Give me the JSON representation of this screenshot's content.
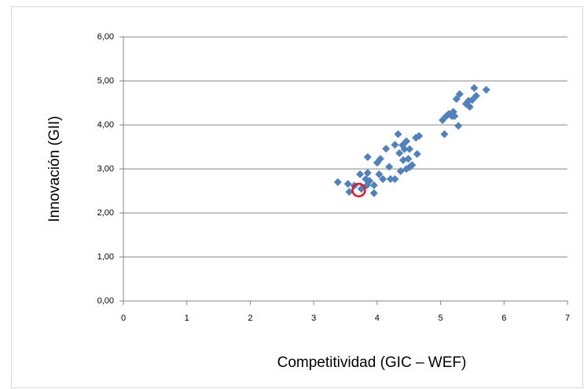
{
  "chart_data": {
    "type": "scatter",
    "x_label": "Competitividad (GIC – WEF)",
    "y_label": "Innovación (GII)",
    "xlim": [
      0,
      7
    ],
    "xticks": [
      0,
      1,
      2,
      3,
      4,
      5,
      6,
      7
    ],
    "ylim": [
      0,
      6
    ],
    "yticks": [
      {
        "value": 0,
        "label": "0,00"
      },
      {
        "value": 1,
        "label": "1,00"
      },
      {
        "value": 2,
        "label": "2,00"
      },
      {
        "value": 3,
        "label": "3,00"
      },
      {
        "value": 4,
        "label": "4,00"
      },
      {
        "value": 5,
        "label": "5,00"
      },
      {
        "value": 6,
        "label": "6,00"
      }
    ],
    "grid": true,
    "color": "#4f81bd",
    "x": [
      3.38,
      3.54,
      3.56,
      3.64,
      3.73,
      3.75,
      3.82,
      3.84,
      3.85,
      3.88,
      3.85,
      3.95,
      3.95,
      4.0,
      4.05,
      4.03,
      4.09,
      4.14,
      4.19,
      4.21,
      4.28,
      4.28,
      4.33,
      4.35,
      4.37,
      4.4,
      4.41,
      4.43,
      4.46,
      4.46,
      4.49,
      4.51,
      4.51,
      4.55,
      4.61,
      4.63,
      4.66,
      5.03,
      5.06,
      5.09,
      5.13,
      5.18,
      5.2,
      5.22,
      5.25,
      5.28,
      5.3,
      5.4,
      5.44,
      5.46,
      5.5,
      5.53,
      5.56,
      5.72
    ],
    "values": [
      2.7,
      2.66,
      2.48,
      2.62,
      2.88,
      2.55,
      2.77,
      2.63,
      2.91,
      2.73,
      3.27,
      2.63,
      2.45,
      3.14,
      3.23,
      2.88,
      2.77,
      3.46,
      3.05,
      2.77,
      2.77,
      3.55,
      3.79,
      3.36,
      2.95,
      3.54,
      3.2,
      3.45,
      3.0,
      3.63,
      3.23,
      3.45,
      3.04,
      3.09,
      3.71,
      3.34,
      3.75,
      4.11,
      3.79,
      4.2,
      4.25,
      4.2,
      4.3,
      4.2,
      4.59,
      3.98,
      4.7,
      4.48,
      4.55,
      4.41,
      4.57,
      4.84,
      4.66,
      4.8
    ],
    "highlight": {
      "x": 3.71,
      "y": 2.52,
      "color": "#e8141c"
    }
  }
}
